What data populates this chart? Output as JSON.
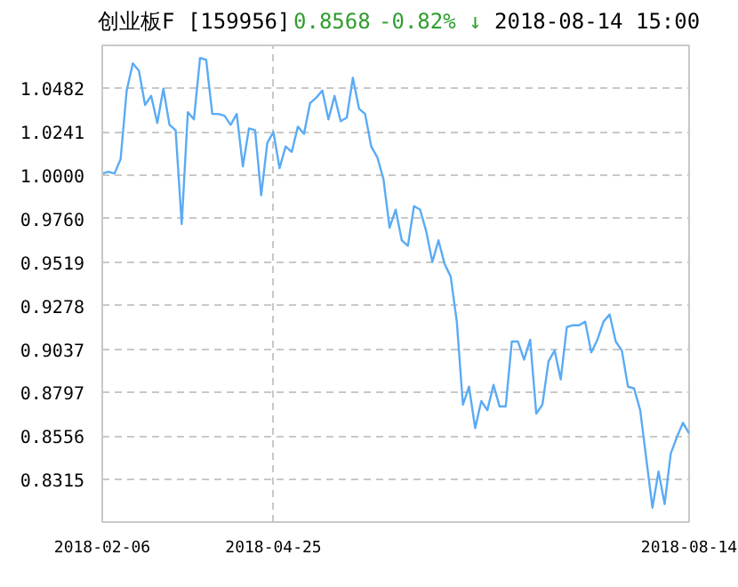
{
  "chart_data": {
    "type": "line",
    "title": "创业板F [159956]",
    "annotations": [
      "0.8568",
      "-0.82% ↓",
      "2018-08-14 15:00"
    ],
    "categories": [
      "2018-02-06",
      null,
      null,
      null,
      null,
      null,
      null,
      null,
      null,
      null,
      null,
      null,
      null,
      null,
      null,
      null,
      null,
      null,
      null,
      null,
      null,
      null,
      null,
      null,
      null,
      null,
      null,
      null,
      "2018-04-25",
      null,
      null,
      null,
      null,
      null,
      null,
      null,
      null,
      null,
      null,
      null,
      null,
      null,
      null,
      null,
      null,
      null,
      null,
      null,
      null,
      null,
      null,
      null,
      null,
      null,
      null,
      null,
      null,
      null,
      null,
      null,
      null,
      null,
      null,
      null,
      null,
      null,
      null,
      null,
      null,
      null,
      null,
      null,
      null,
      null,
      null,
      null,
      null,
      null,
      null,
      null,
      null,
      null,
      null,
      null,
      null,
      null,
      null,
      null,
      null,
      null,
      null,
      null,
      null,
      null,
      null,
      null,
      "2018-08-14"
    ],
    "series": [
      {
        "color": "#5aabf5",
        "values": [
          1.001,
          1.002,
          1.001,
          1.009,
          1.047,
          1.062,
          1.058,
          1.039,
          1.044,
          1.029,
          1.048,
          1.028,
          1.025,
          0.973,
          1.035,
          1.031,
          1.065,
          1.064,
          1.034,
          1.034,
          1.033,
          1.028,
          1.034,
          1.005,
          1.026,
          1.025,
          0.989,
          1.018,
          1.024,
          1.004,
          1.016,
          1.013,
          1.027,
          1.023,
          1.04,
          1.043,
          1.047,
          1.031,
          1.044,
          1.03,
          1.032,
          1.054,
          1.037,
          1.034,
          1.016,
          1.01,
          0.998,
          0.971,
          0.981,
          0.964,
          0.961,
          0.983,
          0.981,
          0.969,
          0.952,
          0.964,
          0.951,
          0.944,
          0.919,
          0.873,
          0.883,
          0.86,
          0.875,
          0.87,
          0.884,
          0.872,
          0.872,
          0.908,
          0.908,
          0.898,
          0.909,
          0.868,
          0.873,
          0.897,
          0.903,
          0.887,
          0.916,
          0.917,
          0.917,
          0.919,
          0.902,
          0.909,
          0.919,
          0.923,
          0.908,
          0.903,
          0.883,
          0.882,
          0.87,
          0.843,
          0.816,
          0.836,
          0.818,
          0.846,
          0.855,
          0.863,
          0.857
        ]
      }
    ],
    "ylim": [
      0.808,
      1.072
    ],
    "yticks": [
      1.0482,
      1.0241,
      {
        "value": 1.0,
        "label": "1.0000"
      },
      {
        "value": 0.976,
        "label": "0.9760"
      },
      0.9519,
      0.9278,
      0.9037,
      0.8797,
      0.8556,
      0.8315
    ],
    "grid": true,
    "marker": "none",
    "line_style": "solid"
  }
}
